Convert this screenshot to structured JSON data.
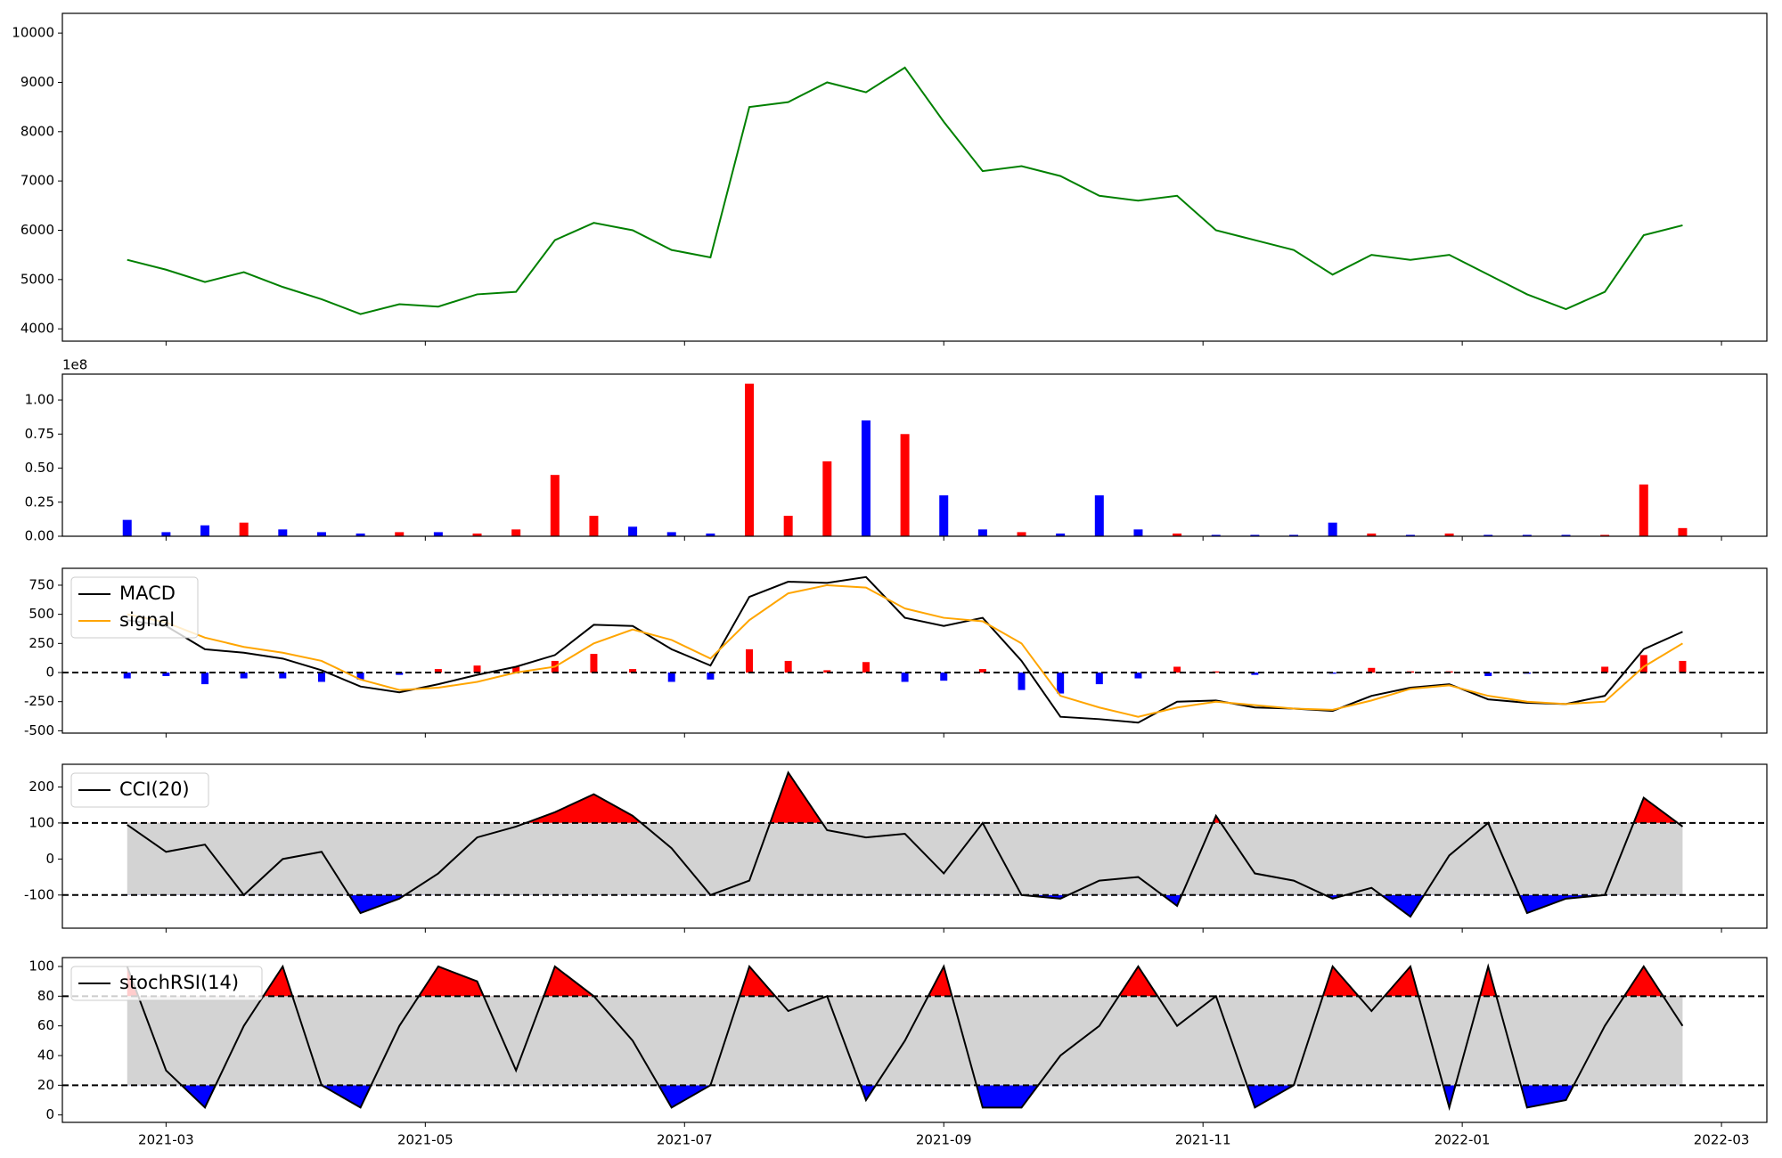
{
  "chart_data": [
    {
      "type": "line",
      "color": "green",
      "x": [
        -0.3,
        0,
        0.3,
        0.6,
        0.9,
        1.2,
        1.5,
        1.8,
        2.1,
        2.4,
        2.7,
        3,
        3.3,
        3.6,
        3.9,
        4.2,
        4.5,
        4.8,
        5.1,
        5.4,
        5.7,
        6,
        6.3,
        6.6,
        6.9,
        7.2,
        7.5,
        7.8,
        8.1,
        8.4,
        8.7,
        9,
        9.3,
        9.6,
        9.9,
        10.2,
        10.5,
        10.8,
        11.1,
        11.4,
        11.7
      ],
      "values": [
        5400,
        5200,
        4950,
        5150,
        4850,
        4600,
        4300,
        4500,
        4450,
        4700,
        4750,
        5800,
        6150,
        6000,
        5600,
        5450,
        8500,
        8600,
        9000,
        8800,
        9300,
        8200,
        7200,
        7300,
        7100,
        6700,
        6600,
        6700,
        6000,
        5800,
        5600,
        5100,
        5500,
        5400,
        5500,
        5100,
        4700,
        4400,
        4750,
        5900,
        6100
      ],
      "xlim": [
        -0.8,
        12.35
      ],
      "ylim": [
        3750,
        10400
      ],
      "yticks": [
        4000,
        5000,
        6000,
        7000,
        8000,
        9000,
        10000
      ]
    },
    {
      "type": "bar",
      "offset_label": "1e8",
      "x": [
        -0.3,
        0,
        0.3,
        0.6,
        0.9,
        1.2,
        1.5,
        1.8,
        2.1,
        2.4,
        2.7,
        3,
        3.3,
        3.6,
        3.9,
        4.2,
        4.5,
        4.8,
        5.1,
        5.4,
        5.7,
        6,
        6.3,
        6.6,
        6.9,
        7.2,
        7.5,
        7.8,
        8.1,
        8.4,
        8.7,
        9,
        9.3,
        9.6,
        9.9,
        10.2,
        10.5,
        10.8,
        11.1,
        11.4,
        11.7
      ],
      "values": [
        0.12,
        0.03,
        0.08,
        0.1,
        0.05,
        0.03,
        0.02,
        0.03,
        0.03,
        0.02,
        0.05,
        0.45,
        0.15,
        0.07,
        0.03,
        0.02,
        1.12,
        0.15,
        0.55,
        0.85,
        0.75,
        0.3,
        0.05,
        0.03,
        0.02,
        0.3,
        0.05,
        0.02,
        0.01,
        0.01,
        0.01,
        0.1,
        0.02,
        0.01,
        0.02,
        0.01,
        0.01,
        0.01,
        0.01,
        0.38,
        0.06
      ],
      "colors": [
        "blue",
        "blue",
        "blue",
        "red",
        "blue",
        "blue",
        "blue",
        "red",
        "blue",
        "red",
        "red",
        "red",
        "red",
        "blue",
        "blue",
        "blue",
        "red",
        "red",
        "red",
        "blue",
        "red",
        "blue",
        "blue",
        "red",
        "blue",
        "blue",
        "blue",
        "red",
        "blue",
        "blue",
        "blue",
        "blue",
        "red",
        "blue",
        "red",
        "blue",
        "blue",
        "blue",
        "red",
        "red",
        "red"
      ],
      "xlim": [
        -0.8,
        12.35
      ],
      "ylim": [
        0,
        1.19
      ],
      "yticks": [
        {
          "value": 0,
          "label": "0.00"
        },
        {
          "value": 0.25,
          "label": "0.25"
        },
        {
          "value": 0.5,
          "label": "0.50"
        },
        {
          "value": 0.75,
          "label": "0.75"
        },
        {
          "value": 1,
          "label": "1.00"
        }
      ]
    },
    {
      "type": "line",
      "legend": "upper left",
      "reference_line": 0,
      "x": [
        -0.3,
        0,
        0.3,
        0.6,
        0.9,
        1.2,
        1.5,
        1.8,
        2.1,
        2.4,
        2.7,
        3,
        3.3,
        3.6,
        3.9,
        4.2,
        4.5,
        4.8,
        5.1,
        5.4,
        5.7,
        6,
        6.3,
        6.6,
        6.9,
        7.2,
        7.5,
        7.8,
        8.1,
        8.4,
        8.7,
        9,
        9.3,
        9.6,
        9.9,
        10.2,
        10.5,
        10.8,
        11.1,
        11.4,
        11.7
      ],
      "series": [
        {
          "name": "MACD",
          "color": "black",
          "values": [
            450,
            400,
            200,
            170,
            120,
            20,
            -120,
            -170,
            -100,
            -20,
            50,
            150,
            410,
            400,
            200,
            60,
            650,
            780,
            770,
            820,
            470,
            400,
            470,
            100,
            -380,
            -400,
            -430,
            -250,
            -240,
            -300,
            -310,
            -330,
            -200,
            -130,
            -100,
            -230,
            -260,
            -270,
            -200,
            200,
            350
          ]
        },
        {
          "name": "signal",
          "color": "orange",
          "values": [
            500,
            430,
            300,
            220,
            170,
            100,
            -60,
            -150,
            -130,
            -80,
            0,
            50,
            250,
            370,
            280,
            120,
            450,
            680,
            750,
            730,
            550,
            470,
            440,
            250,
            -200,
            -300,
            -380,
            -300,
            -250,
            -280,
            -310,
            -320,
            -240,
            -140,
            -110,
            -200,
            -250,
            -270,
            -250,
            50,
            250
          ]
        }
      ],
      "histogram": {
        "pos_color": "red",
        "neg_color": "blue",
        "values": [
          -50,
          -30,
          -100,
          -50,
          -50,
          -80,
          -60,
          -20,
          30,
          60,
          50,
          100,
          160,
          30,
          -80,
          -60,
          200,
          100,
          20,
          90,
          -80,
          -70,
          30,
          -150,
          -180,
          -100,
          -50,
          50,
          10,
          -20,
          0,
          -10,
          40,
          10,
          10,
          -30,
          -10,
          0,
          50,
          150,
          100
        ]
      },
      "xlim": [
        -0.8,
        12.35
      ],
      "ylim": [
        -520,
        895
      ],
      "yticks": [
        -500,
        -250,
        0,
        250,
        500,
        750
      ]
    },
    {
      "type": "line",
      "legend": "upper left",
      "levels": [
        -100,
        100
      ],
      "band_color": "lightgray",
      "above_color": "red",
      "below_color": "blue",
      "x": [
        -0.3,
        0,
        0.3,
        0.6,
        0.9,
        1.2,
        1.5,
        1.8,
        2.1,
        2.4,
        2.7,
        3,
        3.3,
        3.6,
        3.9,
        4.2,
        4.5,
        4.8,
        5.1,
        5.4,
        5.7,
        6,
        6.3,
        6.6,
        6.9,
        7.2,
        7.5,
        7.8,
        8.1,
        8.4,
        8.7,
        9,
        9.3,
        9.6,
        9.9,
        10.2,
        10.5,
        10.8,
        11.1,
        11.4,
        11.7
      ],
      "series": [
        {
          "name": "CCI(20)",
          "color": "black",
          "values": [
            95,
            20,
            40,
            -100,
            0,
            20,
            -150,
            -110,
            -40,
            60,
            90,
            130,
            180,
            120,
            30,
            -100,
            -60,
            240,
            80,
            60,
            70,
            -40,
            100,
            -100,
            -110,
            -60,
            -50,
            -130,
            120,
            -40,
            -60,
            -110,
            -80,
            -160,
            10,
            100,
            -150,
            -110,
            -100,
            170,
            90
          ]
        }
      ],
      "xlim": [
        -0.8,
        12.35
      ],
      "ylim": [
        -192,
        263
      ],
      "yticks": [
        -100,
        0,
        100,
        200
      ]
    },
    {
      "type": "line",
      "legend": "upper left",
      "levels": [
        20,
        80
      ],
      "band_color": "lightgray",
      "above_color": "red",
      "below_color": "blue",
      "x": [
        -0.3,
        0,
        0.3,
        0.6,
        0.9,
        1.2,
        1.5,
        1.8,
        2.1,
        2.4,
        2.7,
        3,
        3.3,
        3.6,
        3.9,
        4.2,
        4.5,
        4.8,
        5.1,
        5.4,
        5.7,
        6,
        6.3,
        6.6,
        6.9,
        7.2,
        7.5,
        7.8,
        8.1,
        8.4,
        8.7,
        9,
        9.3,
        9.6,
        9.9,
        10.2,
        10.5,
        10.8,
        11.1,
        11.4,
        11.7
      ],
      "series": [
        {
          "name": "stochRSI(14)",
          "color": "black",
          "values": [
            100,
            30,
            5,
            60,
            100,
            20,
            5,
            60,
            100,
            90,
            30,
            100,
            80,
            50,
            5,
            20,
            100,
            70,
            80,
            10,
            50,
            100,
            5,
            5,
            40,
            60,
            100,
            60,
            80,
            5,
            20,
            100,
            70,
            100,
            5,
            100,
            5,
            10,
            60,
            100,
            60
          ]
        }
      ],
      "xlim": [
        -0.8,
        12.35
      ],
      "ylim": [
        -5,
        106
      ],
      "yticks": [
        0,
        20,
        40,
        60,
        80,
        100
      ],
      "xticks": [
        {
          "value": 0,
          "label": "2021-03"
        },
        {
          "value": 2,
          "label": "2021-05"
        },
        {
          "value": 4,
          "label": "2021-07"
        },
        {
          "value": 6,
          "label": "2021-09"
        },
        {
          "value": 8,
          "label": "2021-11"
        },
        {
          "value": 10,
          "label": "2022-01"
        },
        {
          "value": 12,
          "label": "2022-03"
        }
      ]
    }
  ]
}
